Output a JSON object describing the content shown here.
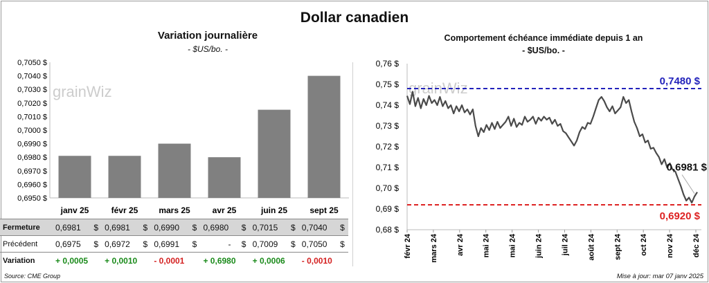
{
  "title": "Dollar canadien",
  "left": {
    "title": "Variation  journalière",
    "subtitle": "- $US/bo. -",
    "watermark": "grainWiz"
  },
  "right": {
    "title": "Comportement échéance immédiate depuis 1 an",
    "subtitle": "- $US/bo. -",
    "watermark": "grainWiz",
    "label_high": "0,7480 $",
    "label_current": "0,6981 $",
    "label_low": "0,6920 $"
  },
  "table": {
    "rows": [
      {
        "label": "Fermeture",
        "values": [
          "0,6981",
          "0,6981",
          "0,6990",
          "0,6980",
          "0,7015",
          "0,7040"
        ],
        "unit": "$"
      },
      {
        "label": "Précédent",
        "values": [
          "0,6975",
          "0,6972",
          "0,6991",
          "-",
          "0,7009",
          "0,7050"
        ],
        "unit": "$"
      },
      {
        "label": "Variation",
        "values": [
          "+ 0,0005",
          "+ 0,0010",
          "- 0,0001",
          "+ 0,6980",
          "+ 0,0006",
          "- 0,0010"
        ]
      }
    ]
  },
  "footer": {
    "source": "Source: CME Group",
    "updated": "Mise à jour: mar 07 janv 2025"
  },
  "colors": {
    "bar": "#808080",
    "line": "#4a4a4a",
    "high_line": "#2222bb",
    "low_line": "#dd2222",
    "positive": "#1a8a1a",
    "negative": "#d42020"
  },
  "chart_data": [
    {
      "type": "bar",
      "categories": [
        "janv 25",
        "févr 25",
        "mars 25",
        "avr 25",
        "juin 25",
        "sept 25"
      ],
      "values": [
        0.6981,
        0.6981,
        0.699,
        0.698,
        0.7015,
        0.704
      ],
      "ylim": [
        0.695,
        0.705
      ],
      "yticks": [
        "0,6950 $",
        "0,6960 $",
        "0,6970 $",
        "0,6980 $",
        "0,6990 $",
        "0,7000 $",
        "0,7010 $",
        "0,7020 $",
        "0,7030 $",
        "0,7040 $",
        "0,7050 $"
      ],
      "grid": false
    },
    {
      "type": "line",
      "x_labels": [
        "févr 24",
        "mars 24",
        "avr 24",
        "mai 24",
        "mai 24",
        "juin 24",
        "juil 24",
        "août 24",
        "sept 24",
        "oct 24",
        "nov 24",
        "déc 24"
      ],
      "yticks": [
        "0,68 $",
        "0,69 $",
        "0,70 $",
        "0,71 $",
        "0,72 $",
        "0,73 $",
        "0,74 $",
        "0,75 $",
        "0,76 $"
      ],
      "ylim": [
        0.68,
        0.76
      ],
      "high": 0.748,
      "low": 0.692,
      "current": 0.6981,
      "series": [
        {
          "values": [
            0.7445,
            0.7405,
            0.7465,
            0.7395,
            0.7435,
            0.7385,
            0.743,
            0.74,
            0.7445,
            0.741,
            0.7425,
            0.74,
            0.744,
            0.7395,
            0.742,
            0.7385,
            0.74,
            0.736,
            0.7395,
            0.737,
            0.74,
            0.7365,
            0.738,
            0.7355,
            0.738,
            0.73,
            0.725,
            0.729,
            0.727,
            0.7305,
            0.728,
            0.7315,
            0.7285,
            0.732,
            0.729,
            0.7305,
            0.732,
            0.7345,
            0.73,
            0.7335,
            0.7295,
            0.7315,
            0.7305,
            0.7345,
            0.732,
            0.733,
            0.7345,
            0.731,
            0.734,
            0.7325,
            0.7345,
            0.733,
            0.734,
            0.731,
            0.733,
            0.73,
            0.731,
            0.7275,
            0.7265,
            0.7245,
            0.7225,
            0.7205,
            0.723,
            0.727,
            0.7295,
            0.7285,
            0.7315,
            0.731,
            0.7345,
            0.7385,
            0.7425,
            0.744,
            0.742,
            0.739,
            0.737,
            0.7395,
            0.736,
            0.7375,
            0.739,
            0.744,
            0.741,
            0.7425,
            0.737,
            0.732,
            0.729,
            0.725,
            0.726,
            0.722,
            0.723,
            0.719,
            0.7195,
            0.717,
            0.715,
            0.7115,
            0.714,
            0.71,
            0.712,
            0.709,
            0.708,
            0.7045,
            0.701,
            0.697,
            0.694,
            0.6955,
            0.693,
            0.696,
            0.6981
          ]
        }
      ]
    }
  ]
}
